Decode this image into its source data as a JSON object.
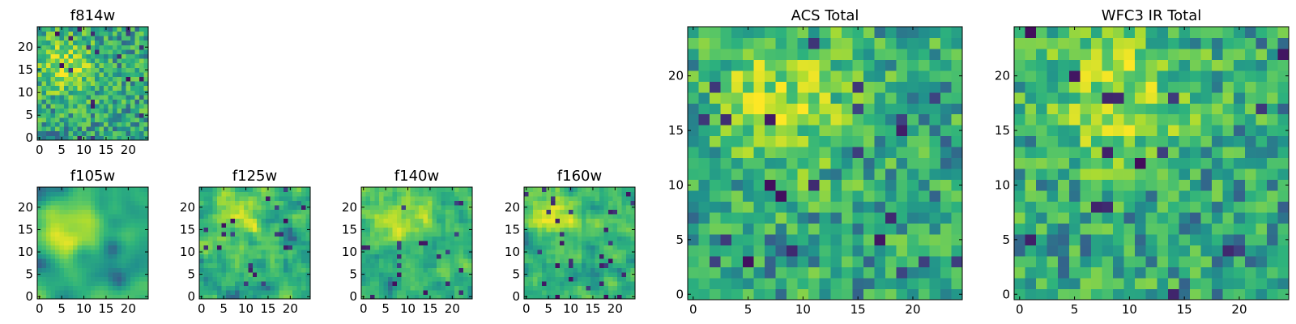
{
  "figure": {
    "colormap": "viridis",
    "colors": [
      "#440154",
      "#3b528b",
      "#21918c",
      "#2db27d",
      "#5ec962",
      "#addc30",
      "#fde725"
    ],
    "frame_color": "#000000",
    "background": "#ffffff"
  },
  "chart_data": [
    {
      "type": "heatmap",
      "title": "f814w",
      "grid_size": 25,
      "smoothness": "fine",
      "xlim": [
        0,
        24
      ],
      "ylim": [
        0,
        24
      ],
      "xticks": [
        0,
        5,
        10,
        15,
        20
      ],
      "yticks": [
        0,
        5,
        10,
        15,
        20
      ],
      "hotspot": [
        6,
        16
      ],
      "value_range": [
        0,
        1
      ]
    },
    {
      "type": "heatmap",
      "title": "f105w",
      "grid_size": 25,
      "smoothness": "smooth",
      "xlim": [
        0,
        24
      ],
      "ylim": [
        0,
        24
      ],
      "xticks": [
        0,
        5,
        10,
        15,
        20
      ],
      "yticks": [
        0,
        5,
        10,
        15,
        20
      ],
      "hotspot": [
        8,
        16
      ],
      "value_range": [
        0,
        1
      ]
    },
    {
      "type": "heatmap",
      "title": "f125w",
      "grid_size": 25,
      "smoothness": "medium",
      "xlim": [
        0,
        24
      ],
      "ylim": [
        0,
        24
      ],
      "xticks": [
        0,
        5,
        10,
        15,
        20
      ],
      "yticks": [
        0,
        5,
        10,
        15,
        20
      ],
      "hotspot": [
        8,
        17
      ],
      "value_range": [
        0,
        1
      ]
    },
    {
      "type": "heatmap",
      "title": "f140w",
      "grid_size": 25,
      "smoothness": "medium",
      "xlim": [
        0,
        24
      ],
      "ylim": [
        0,
        24
      ],
      "xticks": [
        0,
        5,
        10,
        15,
        20
      ],
      "yticks": [
        0,
        5,
        10,
        15,
        20
      ],
      "hotspot": [
        9,
        18
      ],
      "value_range": [
        0,
        1
      ]
    },
    {
      "type": "heatmap",
      "title": "f160w",
      "grid_size": 25,
      "smoothness": "medium",
      "xlim": [
        0,
        24
      ],
      "ylim": [
        0,
        24
      ],
      "xticks": [
        0,
        5,
        10,
        15,
        20
      ],
      "yticks": [
        0,
        5,
        10,
        15,
        20
      ],
      "hotspot": [
        8,
        17
      ],
      "value_range": [
        0,
        1
      ]
    },
    {
      "type": "heatmap",
      "title": "ACS Total",
      "grid_size": 25,
      "smoothness": "coarse",
      "xlim": [
        0,
        24
      ],
      "ylim": [
        0,
        24
      ],
      "xticks": [
        0,
        5,
        10,
        15,
        20
      ],
      "yticks": [
        0,
        5,
        10,
        15,
        20
      ],
      "hotspot": [
        8,
        18
      ],
      "value_range": [
        0,
        1
      ]
    },
    {
      "type": "heatmap",
      "title": "WFC3 IR Total",
      "grid_size": 25,
      "smoothness": "coarse",
      "xlim": [
        0,
        24
      ],
      "ylim": [
        0,
        24
      ],
      "xticks": [
        0,
        5,
        10,
        15,
        20
      ],
      "yticks": [
        0,
        5,
        10,
        15,
        20
      ],
      "hotspot": [
        9,
        18
      ],
      "value_range": [
        0,
        1
      ]
    }
  ]
}
